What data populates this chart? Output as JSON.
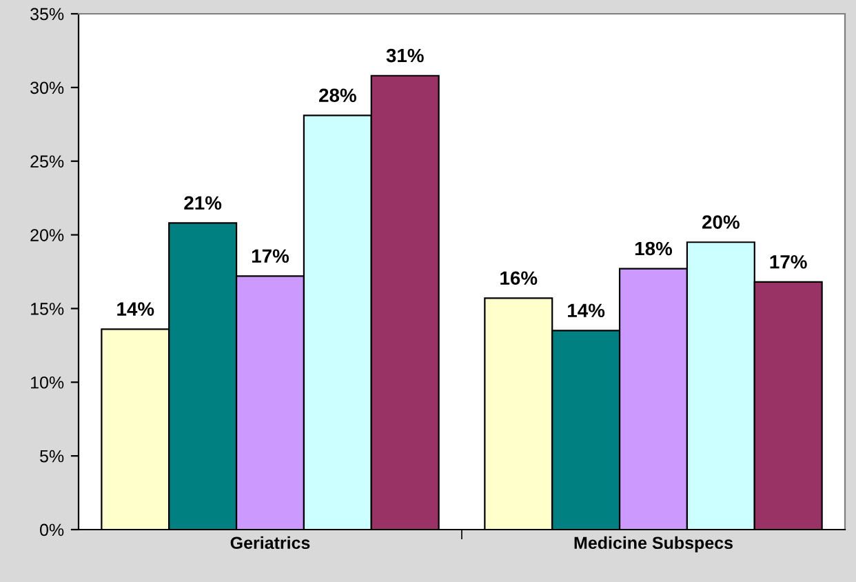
{
  "chart_data": {
    "type": "bar",
    "categories": [
      "Geriatrics",
      "Medicine Subspecs"
    ],
    "series": [
      {
        "color": "#ffffcc",
        "values": [
          13.6,
          15.7
        ],
        "value_labels": [
          "14%",
          "16%"
        ]
      },
      {
        "color": "#008080",
        "values": [
          20.8,
          13.5
        ],
        "value_labels": [
          "21%",
          "14%"
        ]
      },
      {
        "color": "#cc99ff",
        "values": [
          17.2,
          17.7
        ],
        "value_labels": [
          "17%",
          "18%"
        ]
      },
      {
        "color": "#ccffff",
        "values": [
          28.1,
          19.5
        ],
        "value_labels": [
          "28%",
          "20%"
        ]
      },
      {
        "color": "#993366",
        "values": [
          30.8,
          16.8
        ],
        "value_labels": [
          "31%",
          "17%"
        ]
      }
    ],
    "ylim": [
      0,
      35
    ],
    "yticks": [
      {
        "value": 0,
        "label": "0%"
      },
      {
        "value": 5,
        "label": "5%"
      },
      {
        "value": 10,
        "label": "10%"
      },
      {
        "value": 15,
        "label": "15%"
      },
      {
        "value": 20,
        "label": "20%"
      },
      {
        "value": 25,
        "label": "25%"
      },
      {
        "value": 30,
        "label": "30%"
      },
      {
        "value": 35,
        "label": "35%"
      }
    ],
    "grid": false,
    "legend": false
  }
}
